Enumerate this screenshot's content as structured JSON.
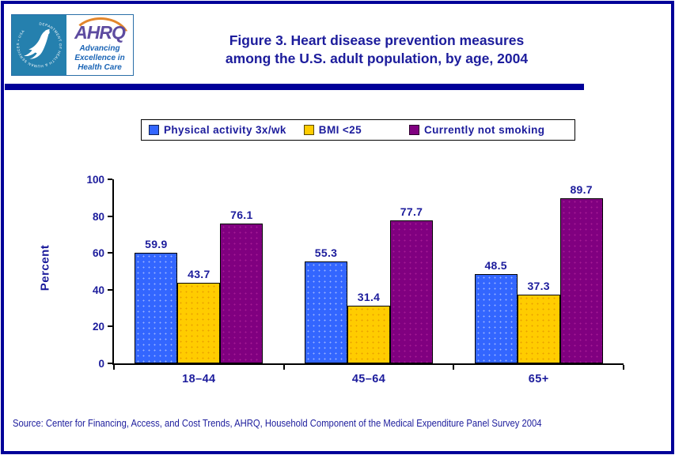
{
  "page": {
    "title_lines": [
      "Figure 3. Heart disease prevention measures",
      "among the U.S. adult population, by age, 2004"
    ],
    "source_note": "Source: Center for Financing, Access, and Cost Trends, AHRQ, Household Component of the Medical Expenditure Panel Survey 2004",
    "colors": {
      "navy_text": "#1C1C9C",
      "border_navy": "#000099",
      "logo_teal": "#2580AE",
      "ahrq_purple": "#5D4BA0",
      "arc_orange": "#E2862C",
      "tagline_blue": "#1A64B5"
    }
  },
  "logo": {
    "ring_text": "DEPARTMENT OF HEALTH & HUMAN SERVICES • USA",
    "brand": "AHRQ",
    "tagline_lines": [
      "Advancing",
      "Excellence in",
      "Health Care"
    ]
  },
  "chart_data": {
    "type": "bar",
    "title": "Figure 3. Heart disease prevention measures among the U.S. adult population, by age, 2004",
    "categories": [
      "18–44",
      "45–64",
      "65+"
    ],
    "series": [
      {
        "name": "Physical activity 3x/wk",
        "color": "#3366FF",
        "values": [
          59.9,
          55.3,
          48.5
        ]
      },
      {
        "name": "BMI <25",
        "color": "#FFCC00",
        "values": [
          43.7,
          31.4,
          37.3
        ]
      },
      {
        "name": "Currently not smoking",
        "color": "#800080",
        "values": [
          76.1,
          77.7,
          89.7
        ]
      }
    ],
    "xlabel": "",
    "ylabel": "Percent",
    "ylim": [
      0,
      100
    ],
    "yticks": [
      0,
      20,
      40,
      60,
      80,
      100
    ],
    "legend_position": "top",
    "grid": false,
    "value_labels": true
  }
}
